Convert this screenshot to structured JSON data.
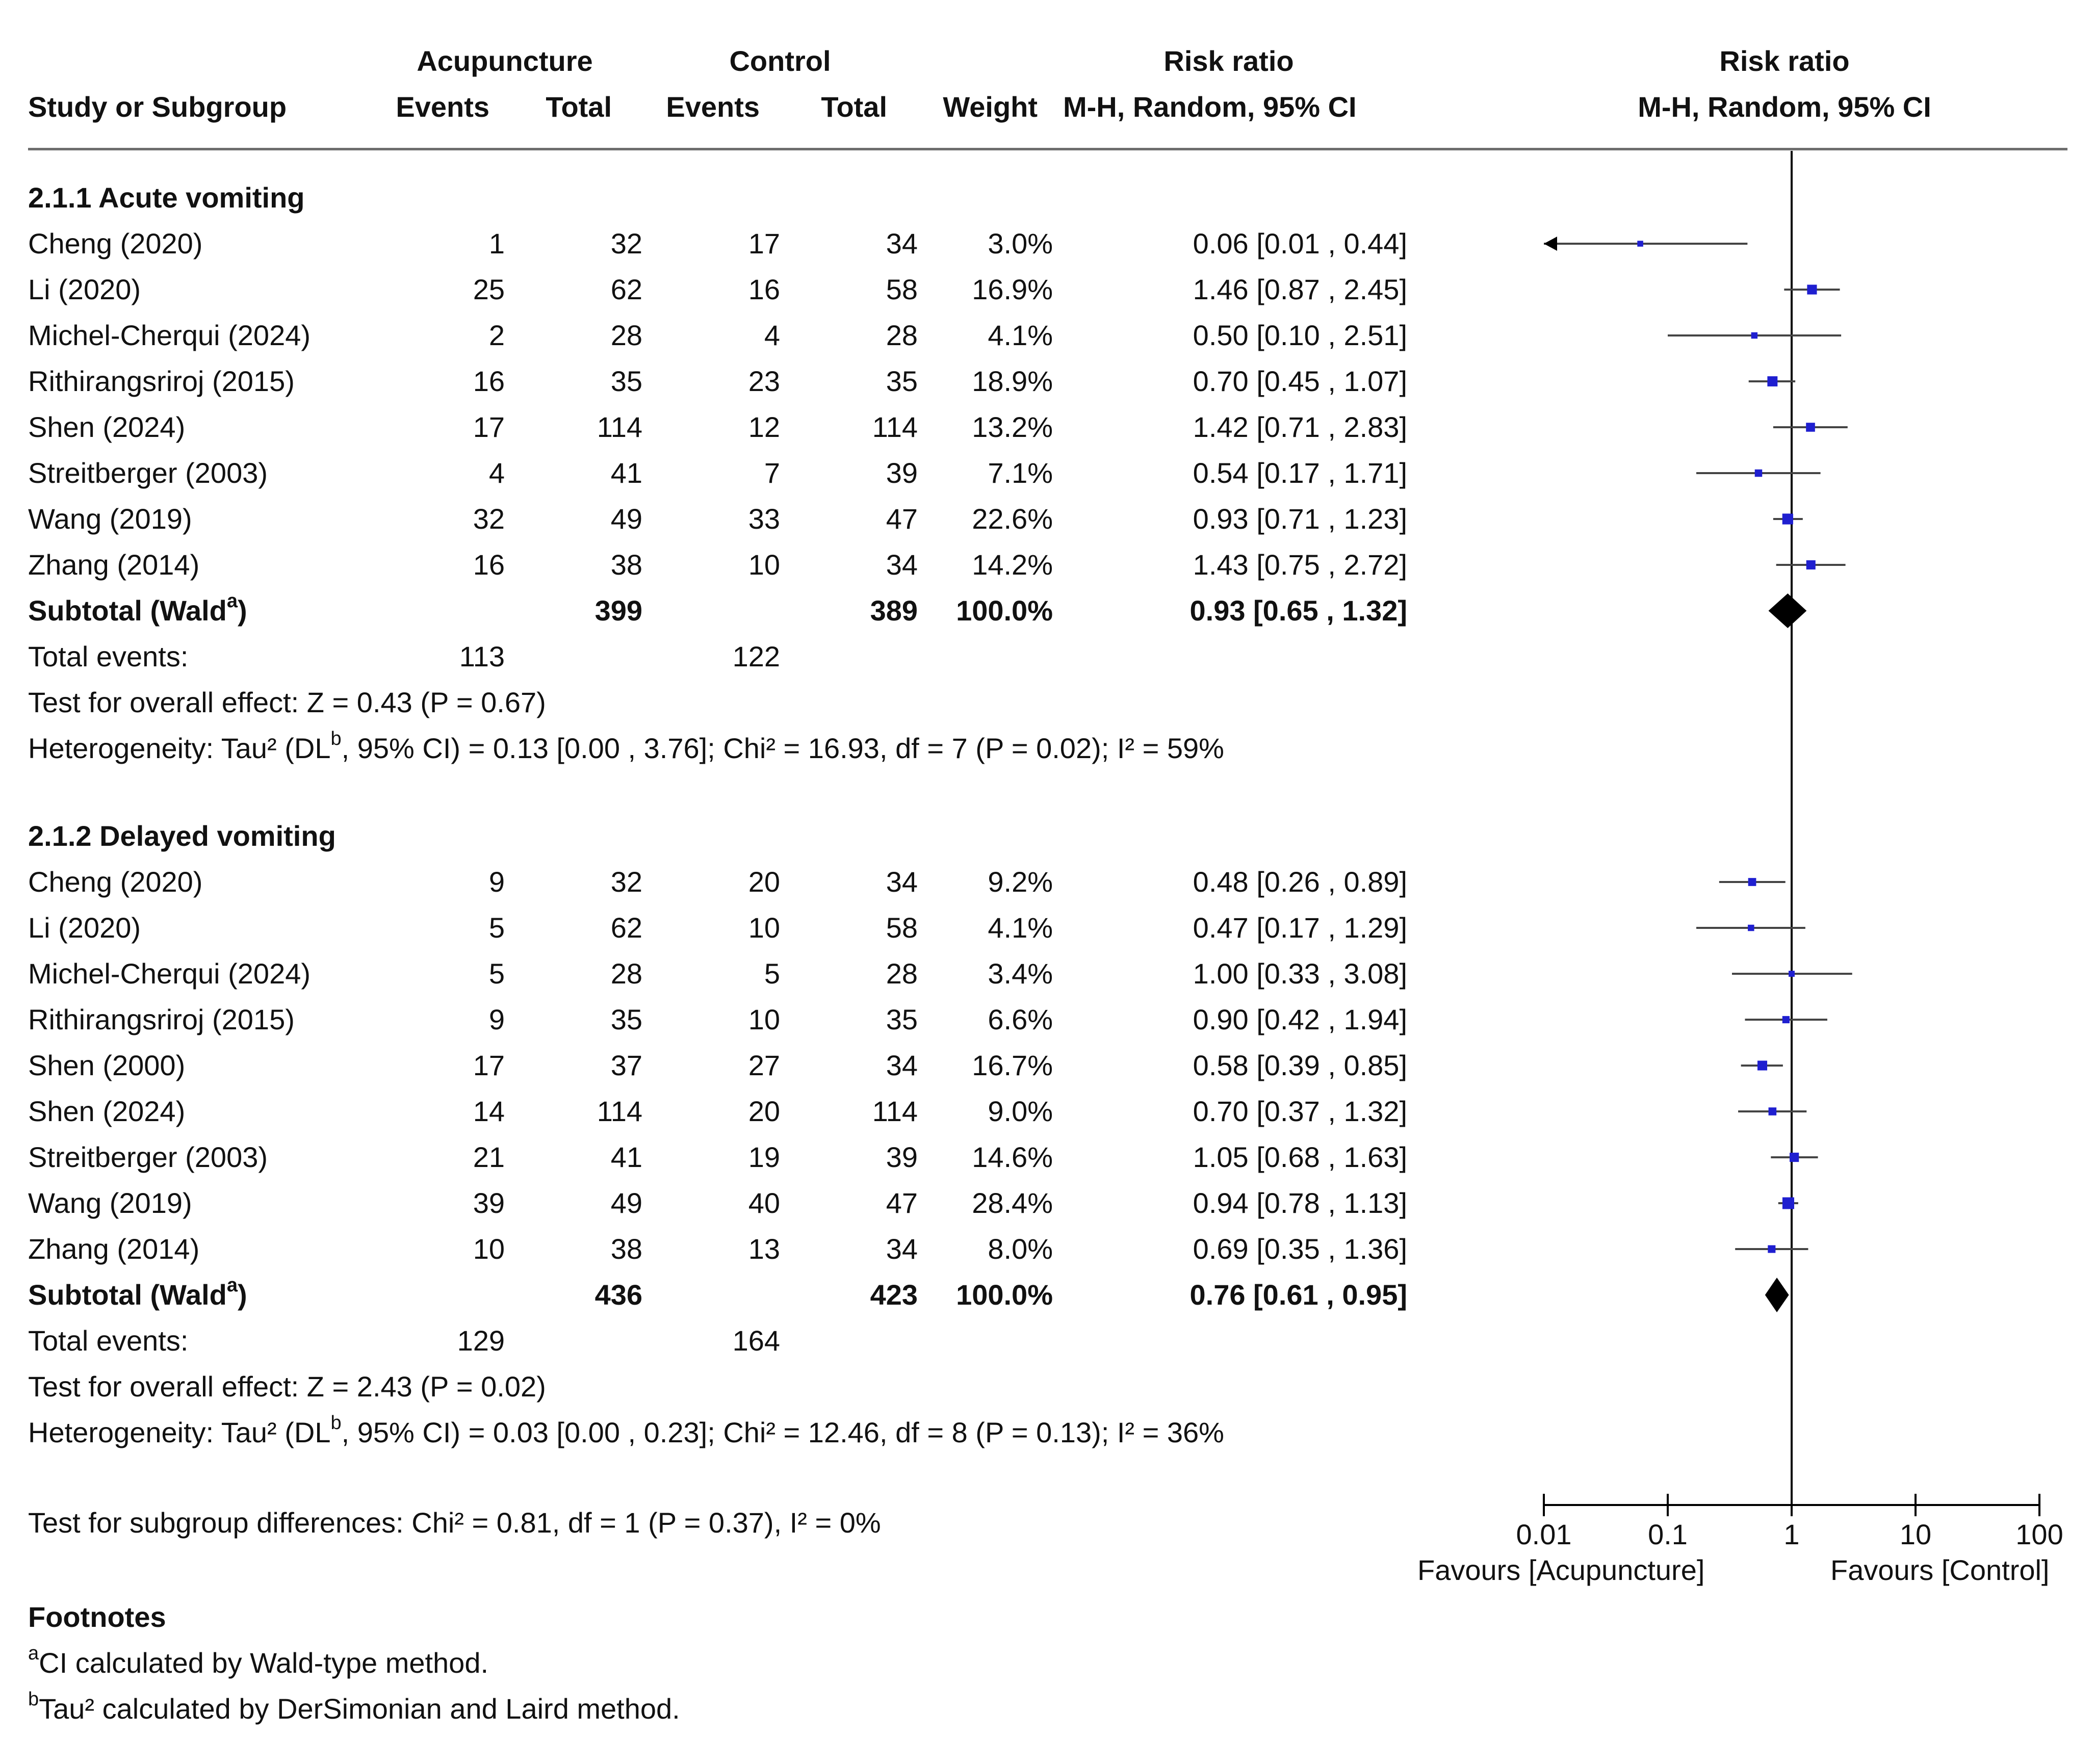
{
  "colors": {
    "point": "#1f1fd0",
    "line": "#444444",
    "diamond": "#000000",
    "text": "#111111"
  },
  "header": {
    "group1": "Acupuncture",
    "group2": "Control",
    "rr_top": "Risk ratio",
    "plot_top": "Risk ratio",
    "col_study": "Study or Subgroup",
    "col_events1": "Events",
    "col_total1": "Total",
    "col_events2": "Events",
    "col_total2": "Total",
    "col_weight": "Weight",
    "col_rr": "M-H, Random, 95% CI",
    "plot_sub": "M-H, Random, 95% CI"
  },
  "subgroups": [
    {
      "title": "2.1.1 Acute vomiting",
      "studies": [
        {
          "study": "Cheng (2020)",
          "e1": "1",
          "t1": "32",
          "e2": "17",
          "t2": "34",
          "weight": "3.0%",
          "ci_text": "0.06 [0.01 , 0.44]",
          "rr": 0.06,
          "lo": 0.01,
          "hi": 0.44,
          "w": 3.0
        },
        {
          "study": "Li (2020)",
          "e1": "25",
          "t1": "62",
          "e2": "16",
          "t2": "58",
          "weight": "16.9%",
          "ci_text": "1.46 [0.87 , 2.45]",
          "rr": 1.46,
          "lo": 0.87,
          "hi": 2.45,
          "w": 16.9
        },
        {
          "study": "Michel-Cherqui (2024)",
          "e1": "2",
          "t1": "28",
          "e2": "4",
          "t2": "28",
          "weight": "4.1%",
          "ci_text": "0.50 [0.10 , 2.51]",
          "rr": 0.5,
          "lo": 0.1,
          "hi": 2.51,
          "w": 4.1
        },
        {
          "study": "Rithirangsriroj (2015)",
          "e1": "16",
          "t1": "35",
          "e2": "23",
          "t2": "35",
          "weight": "18.9%",
          "ci_text": "0.70 [0.45 , 1.07]",
          "rr": 0.7,
          "lo": 0.45,
          "hi": 1.07,
          "w": 18.9
        },
        {
          "study": "Shen (2024)",
          "e1": "17",
          "t1": "114",
          "e2": "12",
          "t2": "114",
          "weight": "13.2%",
          "ci_text": "1.42 [0.71 , 2.83]",
          "rr": 1.42,
          "lo": 0.71,
          "hi": 2.83,
          "w": 13.2
        },
        {
          "study": "Streitberger (2003)",
          "e1": "4",
          "t1": "41",
          "e2": "7",
          "t2": "39",
          "weight": "7.1%",
          "ci_text": "0.54 [0.17 , 1.71]",
          "rr": 0.54,
          "lo": 0.17,
          "hi": 1.71,
          "w": 7.1
        },
        {
          "study": "Wang (2019)",
          "e1": "32",
          "t1": "49",
          "e2": "33",
          "t2": "47",
          "weight": "22.6%",
          "ci_text": "0.93 [0.71 , 1.23]",
          "rr": 0.93,
          "lo": 0.71,
          "hi": 1.23,
          "w": 22.6
        },
        {
          "study": "Zhang (2014)",
          "e1": "16",
          "t1": "38",
          "e2": "10",
          "t2": "34",
          "weight": "14.2%",
          "ci_text": "1.43 [0.75 , 2.72]",
          "rr": 1.43,
          "lo": 0.75,
          "hi": 2.72,
          "w": 14.2
        }
      ],
      "subtotal": {
        "label": "Subtotal (Wald",
        "sup": "a",
        "close": ")",
        "t1": "399",
        "t2": "389",
        "weight": "100.0%",
        "ci_text": "0.93 [0.65 , 1.32]",
        "rr": 0.93,
        "lo": 0.65,
        "hi": 1.32
      },
      "total_events": {
        "label": "Total events:",
        "e1": "113",
        "e2": "122"
      },
      "overall_effect": "Test for overall effect: Z = 0.43 (P = 0.67)",
      "het_pre": "Heterogeneity: Tau² (DL",
      "het_sup": "b",
      "het_post": ", 95% CI) = 0.13 [0.00 , 3.76]; Chi² = 16.93, df = 7 (P = 0.02); I² = 59%"
    },
    {
      "title": "2.1.2 Delayed vomiting",
      "studies": [
        {
          "study": "Cheng (2020)",
          "e1": "9",
          "t1": "32",
          "e2": "20",
          "t2": "34",
          "weight": "9.2%",
          "ci_text": "0.48 [0.26 , 0.89]",
          "rr": 0.48,
          "lo": 0.26,
          "hi": 0.89,
          "w": 9.2
        },
        {
          "study": "Li (2020)",
          "e1": "5",
          "t1": "62",
          "e2": "10",
          "t2": "58",
          "weight": "4.1%",
          "ci_text": "0.47 [0.17 , 1.29]",
          "rr": 0.47,
          "lo": 0.17,
          "hi": 1.29,
          "w": 4.1
        },
        {
          "study": "Michel-Cherqui (2024)",
          "e1": "5",
          "t1": "28",
          "e2": "5",
          "t2": "28",
          "weight": "3.4%",
          "ci_text": "1.00 [0.33 , 3.08]",
          "rr": 1.0,
          "lo": 0.33,
          "hi": 3.08,
          "w": 3.4
        },
        {
          "study": "Rithirangsriroj (2015)",
          "e1": "9",
          "t1": "35",
          "e2": "10",
          "t2": "35",
          "weight": "6.6%",
          "ci_text": "0.90 [0.42 , 1.94]",
          "rr": 0.9,
          "lo": 0.42,
          "hi": 1.94,
          "w": 6.6
        },
        {
          "study": "Shen (2000)",
          "e1": "17",
          "t1": "37",
          "e2": "27",
          "t2": "34",
          "weight": "16.7%",
          "ci_text": "0.58 [0.39 , 0.85]",
          "rr": 0.58,
          "lo": 0.39,
          "hi": 0.85,
          "w": 16.7
        },
        {
          "study": "Shen (2024)",
          "e1": "14",
          "t1": "114",
          "e2": "20",
          "t2": "114",
          "weight": "9.0%",
          "ci_text": "0.70 [0.37 , 1.32]",
          "rr": 0.7,
          "lo": 0.37,
          "hi": 1.32,
          "w": 9.0
        },
        {
          "study": "Streitberger (2003)",
          "e1": "21",
          "t1": "41",
          "e2": "19",
          "t2": "39",
          "weight": "14.6%",
          "ci_text": "1.05 [0.68 , 1.63]",
          "rr": 1.05,
          "lo": 0.68,
          "hi": 1.63,
          "w": 14.6
        },
        {
          "study": "Wang (2019)",
          "e1": "39",
          "t1": "49",
          "e2": "40",
          "t2": "47",
          "weight": "28.4%",
          "ci_text": "0.94 [0.78 , 1.13]",
          "rr": 0.94,
          "lo": 0.78,
          "hi": 1.13,
          "w": 28.4
        },
        {
          "study": "Zhang (2014)",
          "e1": "10",
          "t1": "38",
          "e2": "13",
          "t2": "34",
          "weight": "8.0%",
          "ci_text": "0.69 [0.35 , 1.36]",
          "rr": 0.69,
          "lo": 0.35,
          "hi": 1.36,
          "w": 8.0
        }
      ],
      "subtotal": {
        "label": "Subtotal (Wald",
        "sup": "a",
        "close": ")",
        "t1": "436",
        "t2": "423",
        "weight": "100.0%",
        "ci_text": "0.76 [0.61 , 0.95]",
        "rr": 0.76,
        "lo": 0.61,
        "hi": 0.95
      },
      "total_events": {
        "label": "Total events:",
        "e1": "129",
        "e2": "164"
      },
      "overall_effect": "Test for overall effect: Z = 2.43 (P = 0.02)",
      "het_pre": "Heterogeneity: Tau² (DL",
      "het_sup": "b",
      "het_post": ", 95% CI) = 0.03 [0.00 , 0.23]; Chi² = 12.46, df = 8 (P = 0.13); I² = 36%"
    }
  ],
  "subgroup_test": "Test for subgroup differences: Chi² = 0.81, df = 1 (P = 0.37), I² = 0%",
  "axis": {
    "ticks": [
      0.01,
      0.1,
      1,
      10,
      100
    ],
    "tick_labels": [
      "0.01",
      "0.1",
      "1",
      "10",
      "100"
    ],
    "favours_left": "Favours [Acupuncture]",
    "favours_right": "Favours [Control]"
  },
  "footnotes": {
    "title": "Footnotes",
    "a_sup": "a",
    "a_text": "CI calculated by Wald-type method.",
    "b_sup": "b",
    "b_text": "Tau² calculated by DerSimonian and Laird method."
  },
  "chart_data": {
    "type": "forest",
    "title": "",
    "xlabel": "Risk ratio (M-H, Random, 95% CI), log scale",
    "xlim": [
      0.01,
      100
    ],
    "x_scale": "log",
    "null_line": 1,
    "series": [
      {
        "name": "2.1.1 Acute vomiting",
        "points": [
          {
            "label": "Cheng (2020)",
            "rr": 0.06,
            "lo": 0.01,
            "hi": 0.44,
            "weight": 3.0
          },
          {
            "label": "Li (2020)",
            "rr": 1.46,
            "lo": 0.87,
            "hi": 2.45,
            "weight": 16.9
          },
          {
            "label": "Michel-Cherqui (2024)",
            "rr": 0.5,
            "lo": 0.1,
            "hi": 2.51,
            "weight": 4.1
          },
          {
            "label": "Rithirangsriroj (2015)",
            "rr": 0.7,
            "lo": 0.45,
            "hi": 1.07,
            "weight": 18.9
          },
          {
            "label": "Shen (2024)",
            "rr": 1.42,
            "lo": 0.71,
            "hi": 2.83,
            "weight": 13.2
          },
          {
            "label": "Streitberger (2003)",
            "rr": 0.54,
            "lo": 0.17,
            "hi": 1.71,
            "weight": 7.1
          },
          {
            "label": "Wang (2019)",
            "rr": 0.93,
            "lo": 0.71,
            "hi": 1.23,
            "weight": 22.6
          },
          {
            "label": "Zhang (2014)",
            "rr": 1.43,
            "lo": 0.75,
            "hi": 2.72,
            "weight": 14.2
          }
        ],
        "pooled": {
          "rr": 0.93,
          "lo": 0.65,
          "hi": 1.32
        }
      },
      {
        "name": "2.1.2 Delayed vomiting",
        "points": [
          {
            "label": "Cheng (2020)",
            "rr": 0.48,
            "lo": 0.26,
            "hi": 0.89,
            "weight": 9.2
          },
          {
            "label": "Li (2020)",
            "rr": 0.47,
            "lo": 0.17,
            "hi": 1.29,
            "weight": 4.1
          },
          {
            "label": "Michel-Cherqui (2024)",
            "rr": 1.0,
            "lo": 0.33,
            "hi": 3.08,
            "weight": 3.4
          },
          {
            "label": "Rithirangsriroj (2015)",
            "rr": 0.9,
            "lo": 0.42,
            "hi": 1.94,
            "weight": 6.6
          },
          {
            "label": "Shen (2000)",
            "rr": 0.58,
            "lo": 0.39,
            "hi": 0.85,
            "weight": 16.7
          },
          {
            "label": "Shen (2024)",
            "rr": 0.7,
            "lo": 0.37,
            "hi": 1.32,
            "weight": 9.0
          },
          {
            "label": "Streitberger (2003)",
            "rr": 1.05,
            "lo": 0.68,
            "hi": 1.63,
            "weight": 14.6
          },
          {
            "label": "Wang (2019)",
            "rr": 0.94,
            "lo": 0.78,
            "hi": 1.13,
            "weight": 28.4
          },
          {
            "label": "Zhang (2014)",
            "rr": 0.69,
            "lo": 0.35,
            "hi": 1.36,
            "weight": 8.0
          }
        ],
        "pooled": {
          "rr": 0.76,
          "lo": 0.61,
          "hi": 0.95
        }
      }
    ]
  }
}
